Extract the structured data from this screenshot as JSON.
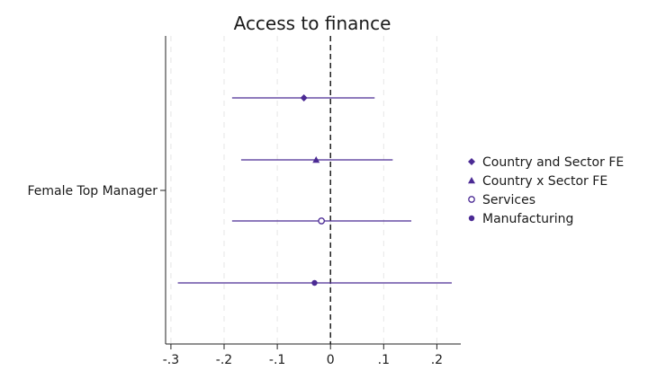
{
  "chart_data": {
    "type": "scatter",
    "subtype": "coefficient-plot",
    "title": "Access to finance",
    "xlabel": "",
    "ylabel": "",
    "y_category": "Female Top Manager",
    "xlim": [
      -0.31,
      0.245
    ],
    "x_ticks": [
      -0.3,
      -0.2,
      -0.1,
      0,
      0.1,
      0.2
    ],
    "x_tick_labels": [
      "-.3",
      "-.2",
      "-.1",
      "0",
      ".1",
      ".2"
    ],
    "grid": "vertical dashed",
    "reference_line": 0,
    "legend_position": "right",
    "color": "#4b2a94",
    "series": [
      {
        "name": "Country and Sector FE",
        "marker": "diamond",
        "estimate": -0.05,
        "ci": [
          -0.185,
          0.083
        ]
      },
      {
        "name": "Country x Sector FE",
        "marker": "triangle",
        "estimate": -0.027,
        "ci": [
          -0.168,
          0.117
        ]
      },
      {
        "name": "Services",
        "marker": "hollow-circle",
        "estimate": -0.017,
        "ci": [
          -0.185,
          0.152
        ]
      },
      {
        "name": "Manufacturing",
        "marker": "circle",
        "estimate": -0.03,
        "ci": [
          -0.287,
          0.228
        ]
      }
    ]
  }
}
